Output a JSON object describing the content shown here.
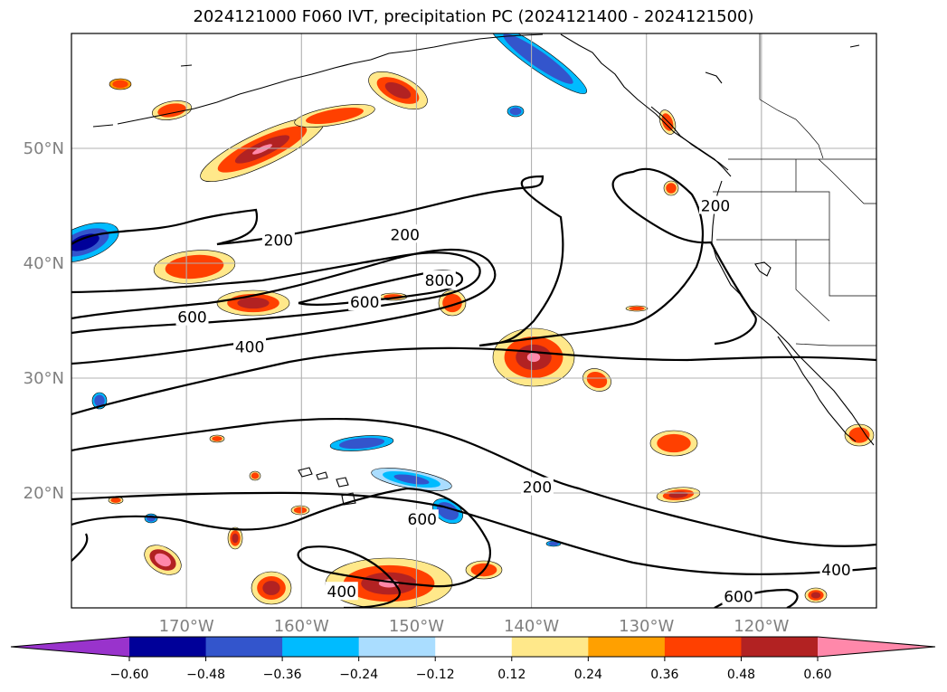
{
  "title": "2024121000 F060 IVT, precipitation PC (2024121400 - 2024121500)",
  "chart_data": {
    "type": "heatmap",
    "title": "2024121000 F060 IVT, precipitation PC (2024121400 - 2024121500)",
    "projection": "plate carree",
    "xlim": [
      -180,
      -110
    ],
    "ylim": [
      10,
      60
    ],
    "grid": true,
    "x_ticks": [
      {
        "value": -170,
        "label": "170°W"
      },
      {
        "value": -160,
        "label": "160°W"
      },
      {
        "value": -150,
        "label": "150°W"
      },
      {
        "value": -140,
        "label": "140°W"
      },
      {
        "value": -130,
        "label": "130°W"
      },
      {
        "value": -120,
        "label": "120°W"
      }
    ],
    "y_ticks": [
      {
        "value": 20,
        "label": "20°N"
      },
      {
        "value": 30,
        "label": "30°N"
      },
      {
        "value": 40,
        "label": "40°N"
      },
      {
        "value": 50,
        "label": "50°N"
      }
    ],
    "colorbar": {
      "orientation": "horizontal",
      "extend": "both",
      "levels": [
        -0.6,
        -0.48,
        -0.36,
        -0.24,
        -0.12,
        0.12,
        0.24,
        0.36,
        0.48,
        0.6
      ],
      "tick_labels": [
        "−0.60",
        "−0.48",
        "−0.36",
        "−0.24",
        "−0.12",
        "0.12",
        "0.24",
        "0.36",
        "0.48",
        "0.60"
      ],
      "colors": [
        "#9933cc",
        "#000099",
        "#3355cc",
        "#00bbff",
        "#aaddff",
        "#ffffff",
        "#ffe88a",
        "#ffa000",
        "#ff4000",
        "#b22222",
        "#ff88aa"
      ]
    },
    "contours": {
      "variable": "IVT",
      "levels": [
        200,
        400,
        600,
        800
      ],
      "labels": [
        {
          "text": "200",
          "lon": -162,
          "lat": 42
        },
        {
          "text": "200",
          "lon": -151,
          "lat": 42.5
        },
        {
          "text": "200",
          "lon": -124,
          "lat": 45
        },
        {
          "text": "200",
          "lon": -139.5,
          "lat": 20.5
        },
        {
          "text": "400",
          "lon": -164.5,
          "lat": 32.7
        },
        {
          "text": "400",
          "lon": -156.5,
          "lat": 11.4
        },
        {
          "text": "400",
          "lon": -113.5,
          "lat": 13.3
        },
        {
          "text": "600",
          "lon": -169.5,
          "lat": 35.3
        },
        {
          "text": "600",
          "lon": -154.5,
          "lat": 36.6
        },
        {
          "text": "600",
          "lon": -149.5,
          "lat": 17.7
        },
        {
          "text": "600",
          "lon": -122,
          "lat": 11
        },
        {
          "text": "800",
          "lon": -148,
          "lat": 38.5
        }
      ]
    }
  }
}
